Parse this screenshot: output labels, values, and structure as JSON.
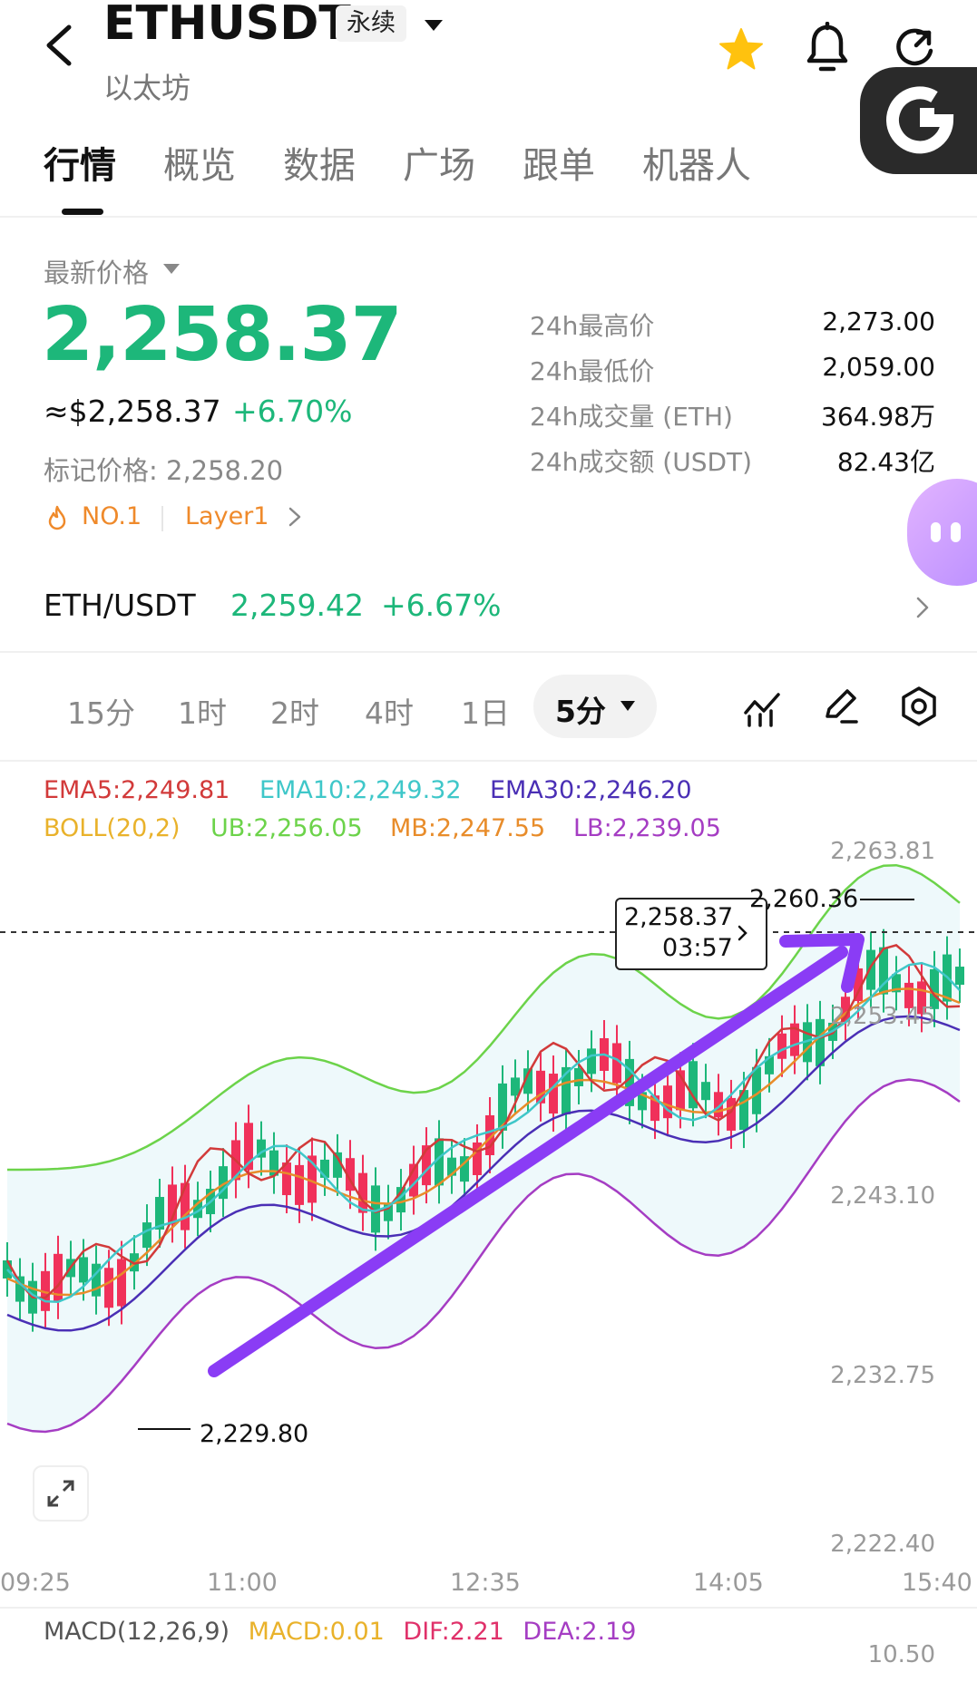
{
  "header": {
    "symbol": "ETHUSDT",
    "contract_type": "永续",
    "subtitle": "以太坊"
  },
  "tabs": [
    {
      "label": "行情",
      "active": true
    },
    {
      "label": "概览",
      "active": false
    },
    {
      "label": "数据",
      "active": false
    },
    {
      "label": "广场",
      "active": false
    },
    {
      "label": "跟单",
      "active": false
    },
    {
      "label": "机器人",
      "active": false
    }
  ],
  "price": {
    "latest_label": "最新价格",
    "last": "2,258.37",
    "usd": "≈$2,258.37",
    "change": "+6.70%",
    "mark": "标记价格: 2,258.20",
    "rank": "NO.1",
    "category": "Layer1"
  },
  "stats": [
    {
      "label": "24h最高价",
      "value": "2,273.00"
    },
    {
      "label": "24h最低价",
      "value": "2,059.00"
    },
    {
      "label": "24h成交量 (ETH)",
      "value": "364.98万"
    },
    {
      "label": "24h成交额 (USDT)",
      "value": "82.43亿"
    }
  ],
  "spot": {
    "pair": "ETH/USDT",
    "price": "2,259.42",
    "change": "+6.67%"
  },
  "intervals": [
    "15分",
    "1时",
    "2时",
    "4时",
    "1日"
  ],
  "interval_selected": "5分",
  "legends": {
    "ema5": "EMA5:2,249.81",
    "ema10": "EMA10:2,249.32",
    "ema30": "EMA30:2,246.20",
    "boll": "BOLL(20,2)",
    "ub": "UB:2,256.05",
    "mb": "MB:2,247.55",
    "lb": "LB:2,239.05"
  },
  "price_axis": [
    "2,263.81",
    "2,253.45",
    "2,243.10",
    "2,232.75",
    "2,222.40"
  ],
  "time_axis": [
    "09:25",
    "11:00",
    "12:35",
    "14:05",
    "15:40"
  ],
  "current_box": {
    "price": "2,258.37",
    "time": "03:57"
  },
  "high_marker": "2,260.36",
  "low_marker": "2,229.80",
  "macd": {
    "label": "MACD(12,26,9)",
    "macd": "MACD:0.01",
    "dif": "DIF:2.21",
    "dea": "DEA:2.19",
    "scale": "10.50"
  },
  "colors": {
    "up": "#1db77a",
    "down": "#f0315a",
    "ema5": "#d23a3a",
    "ema10": "#3fc7c9",
    "ema30": "#4a2fb5",
    "boll": "#e9b22b",
    "ub": "#6cd34a",
    "mb": "#e88c2a",
    "lb": "#a53dc3",
    "annotation": "#8a3cf5"
  },
  "chart_data": {
    "type": "candlestick",
    "x_range": [
      "09:25",
      "15:40"
    ],
    "ylim": [
      2222.4,
      2263.81
    ],
    "last": 2258.37,
    "high": 2260.36,
    "low": 2229.8
  }
}
